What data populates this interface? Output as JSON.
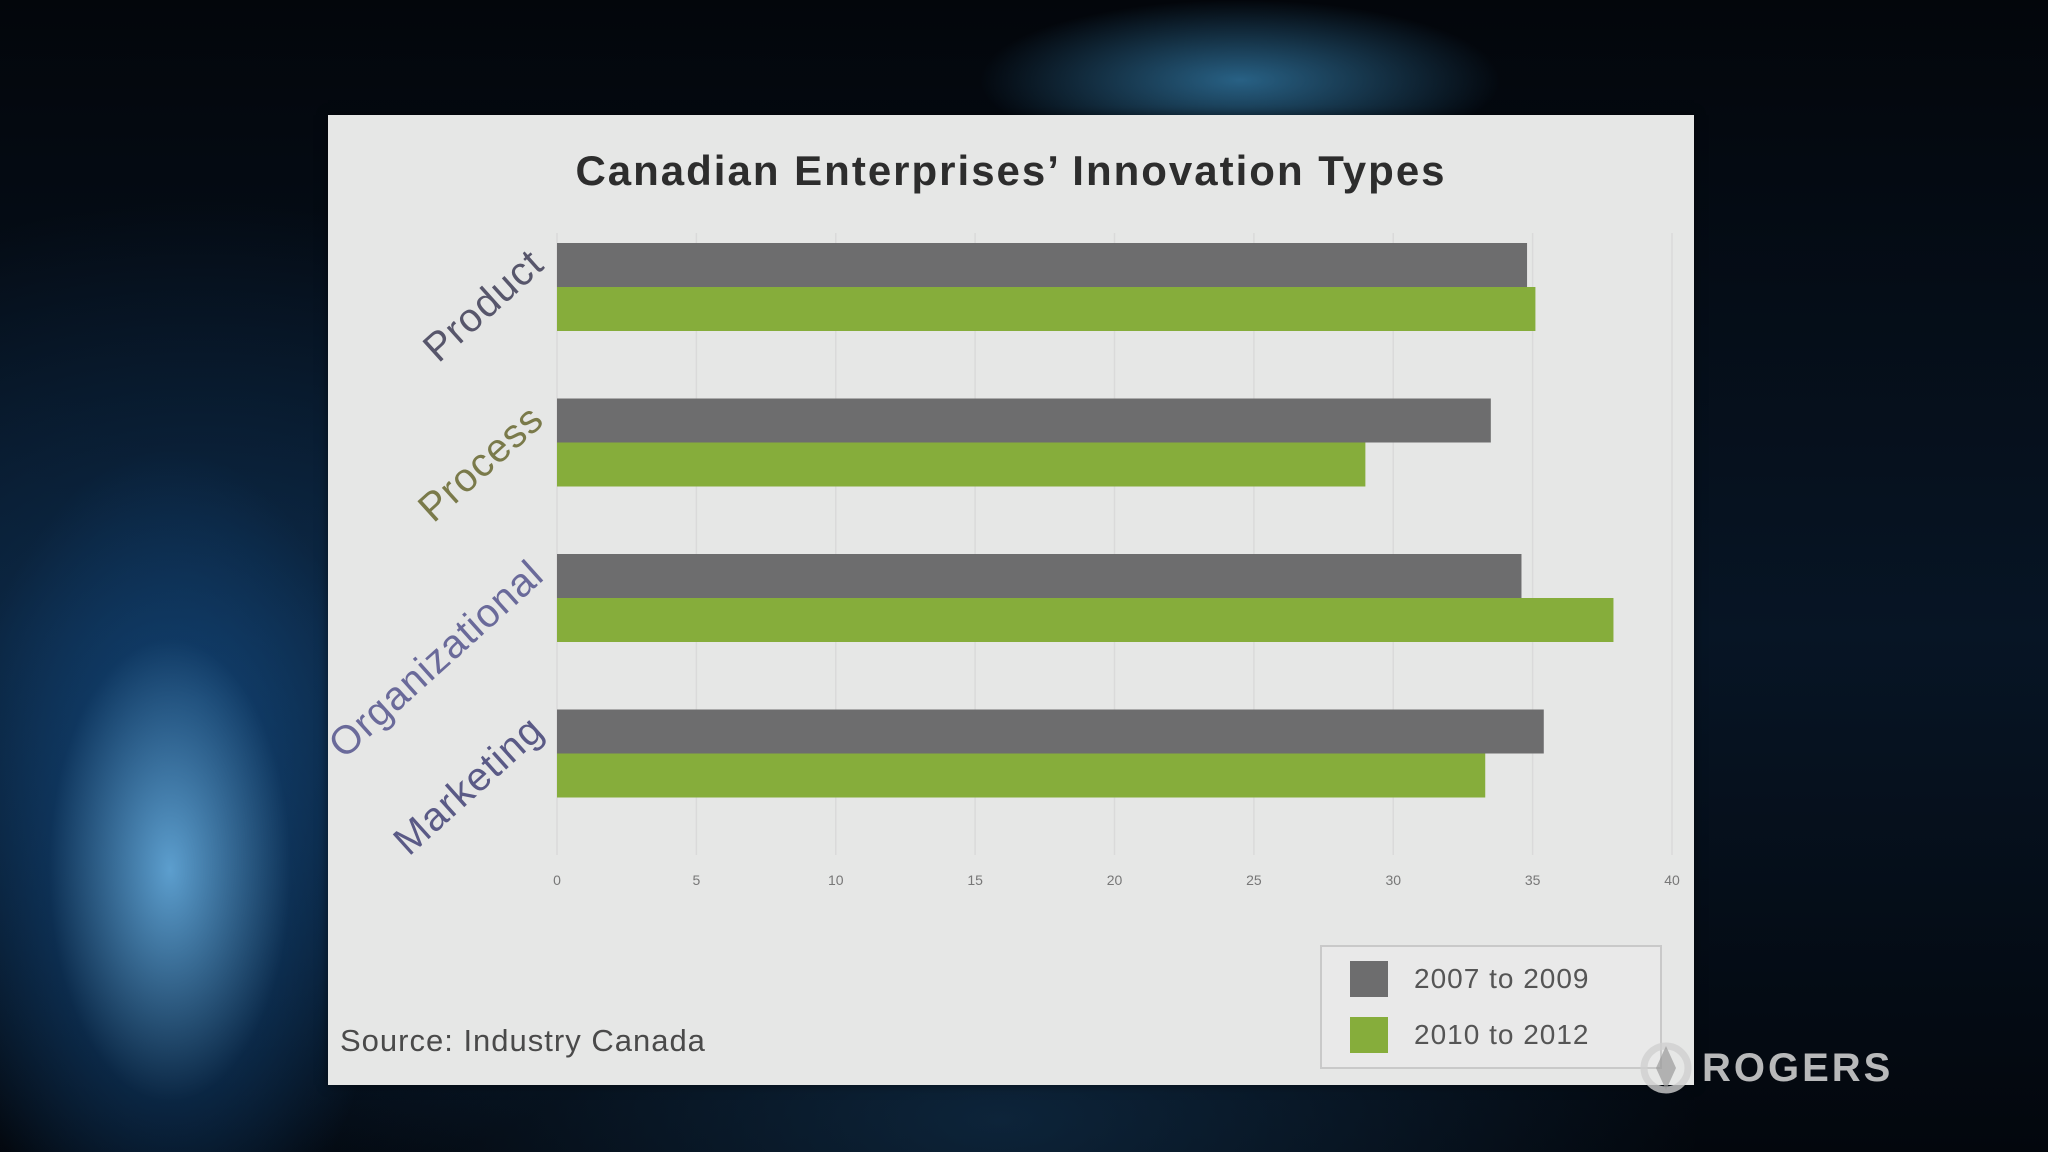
{
  "logo_text": "ROGERS",
  "source": "Source: Industry Canada",
  "colors": {
    "series_1": "#6d6d6e",
    "series_2": "#86ad3b"
  },
  "chart_data": {
    "type": "bar",
    "orientation": "horizontal",
    "title": "Canadian Enterprises’ Innovation Types",
    "xlabel": "",
    "ylabel": "",
    "categories": [
      "Product",
      "Process",
      "Organizational",
      "Marketing"
    ],
    "category_colors": [
      "#57566b",
      "#7a7a4a",
      "#6a6a9a",
      "#5a5a86"
    ],
    "series": [
      {
        "name": "2007 to 2009",
        "values": [
          34.8,
          33.5,
          34.6,
          35.4
        ]
      },
      {
        "name": "2010 to 2012",
        "values": [
          35.1,
          29.0,
          37.9,
          33.3
        ]
      }
    ],
    "xlim": [
      0,
      40
    ],
    "xticks": [
      0,
      5,
      10,
      15,
      20,
      25,
      30,
      35,
      40
    ],
    "grid": true,
    "legend": "bottom-right"
  }
}
